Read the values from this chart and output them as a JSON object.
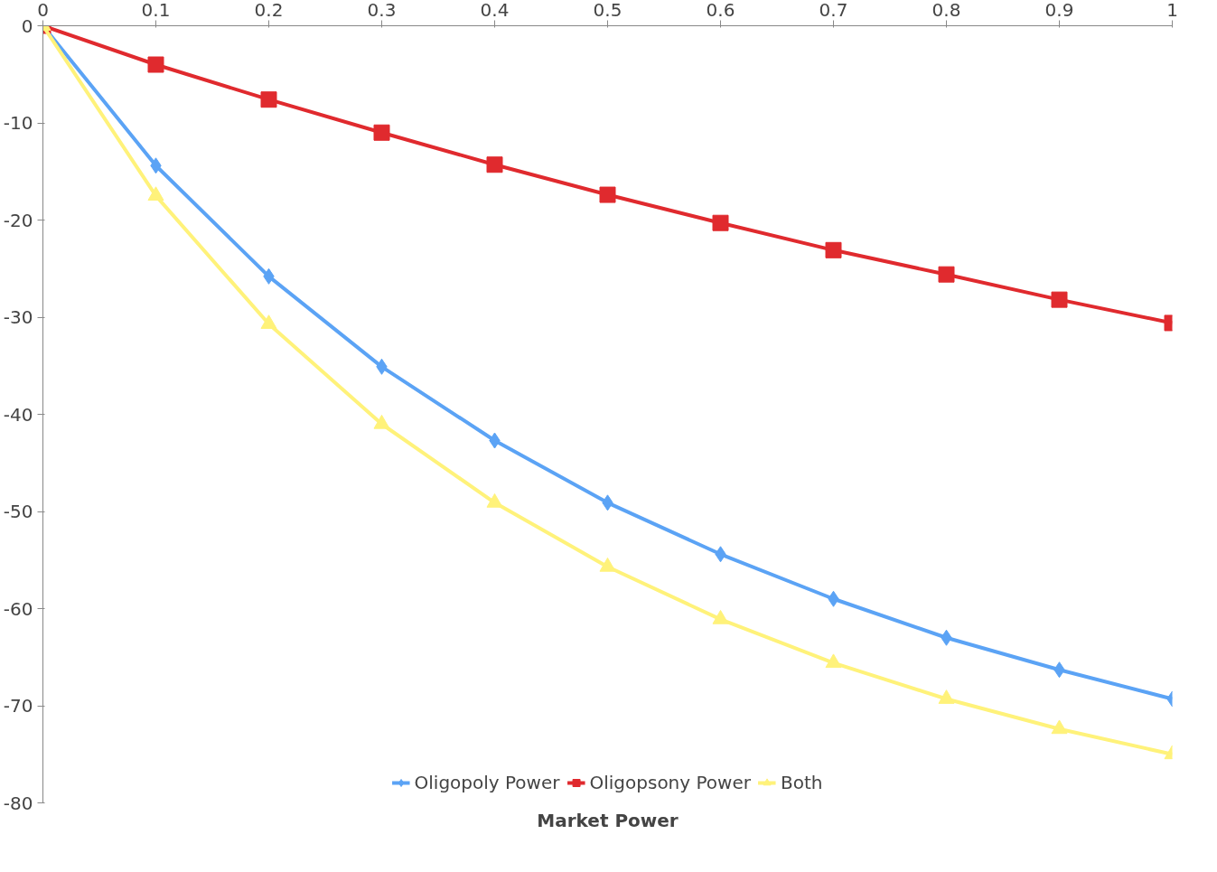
{
  "chart_data": {
    "type": "line",
    "xlabel": "Market Power",
    "x": [
      0,
      0.1,
      0.2,
      0.3,
      0.4,
      0.5,
      0.6,
      0.7,
      0.8,
      0.9,
      1
    ],
    "series": [
      {
        "name": "Oligopoly Power",
        "color": "#5ba3f5",
        "marker": "diamond",
        "values": [
          0,
          -14.4,
          -25.8,
          -35.1,
          -42.7,
          -49.1,
          -54.4,
          -59.0,
          -63.0,
          -66.3,
          -69.3
        ]
      },
      {
        "name": "Oligopsony Power",
        "color": "#e02a2e",
        "marker": "square",
        "values": [
          0,
          -4.0,
          -7.6,
          -11.0,
          -14.3,
          -17.4,
          -20.3,
          -23.1,
          -25.6,
          -28.2,
          -30.6
        ]
      },
      {
        "name": "Both",
        "color": "#fff27a",
        "marker": "triangle",
        "values": [
          0,
          -17.5,
          -30.7,
          -41.0,
          -49.1,
          -55.7,
          -61.1,
          -65.6,
          -69.3,
          -72.4,
          -75.0
        ]
      }
    ],
    "xlim": [
      0,
      1
    ],
    "xticks": [
      0,
      0.1,
      0.2,
      0.3,
      0.4,
      0.5,
      0.6,
      0.7,
      0.8,
      0.9,
      1
    ],
    "ylim": [
      -80,
      0
    ],
    "yticks": [
      0,
      -10,
      -20,
      -30,
      -40,
      -50,
      -60,
      -70,
      -80
    ],
    "grid": false,
    "legend": "bottom",
    "line_style": "solid"
  }
}
